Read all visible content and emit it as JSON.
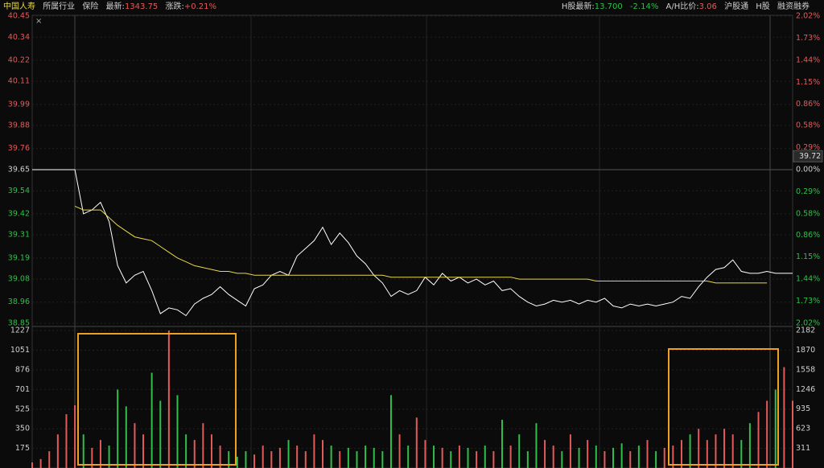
{
  "header": {
    "name": "中国人寿",
    "industry_label": "所属行业",
    "industry": "保险",
    "last_label": "最新:",
    "last": "1343.75",
    "change_label": "涨跌:",
    "change": "+0.21%",
    "h_last_label": "H股最新:",
    "h_last": "13.700",
    "h_change": "-2.14%",
    "ah_label": "A/H比价:",
    "ah": "3.06",
    "links": [
      "沪股通",
      "H股",
      "融资融券"
    ]
  },
  "chart_data": [
    {
      "type": "line",
      "reference": 39.65,
      "cursor_value": 39.72,
      "ylim": [
        38.85,
        40.45
      ],
      "yticks": [
        40.45,
        40.34,
        40.22,
        40.11,
        39.99,
        39.88,
        39.76,
        39.65,
        39.54,
        39.42,
        39.31,
        39.19,
        39.08,
        38.96,
        38.85
      ],
      "y2lim": [
        -2.02,
        2.02
      ],
      "y2ticks": [
        {
          "value": 2.02,
          "label": "2.02%"
        },
        {
          "value": 1.73,
          "label": "1.73%"
        },
        {
          "value": 1.44,
          "label": "1.44%"
        },
        {
          "value": 1.15,
          "label": "1.15%"
        },
        {
          "value": 0.86,
          "label": "0.86%"
        },
        {
          "value": 0.58,
          "label": "0.58%"
        },
        {
          "value": 0.29,
          "label": "0.29%"
        },
        {
          "value": 0,
          "label": "0.00%"
        },
        {
          "value": -0.29,
          "label": "0.29%"
        },
        {
          "value": -0.58,
          "label": "0.58%"
        },
        {
          "value": -0.86,
          "label": "0.86%"
        },
        {
          "value": -1.15,
          "label": "1.15%"
        },
        {
          "value": -1.44,
          "label": "1.44%"
        },
        {
          "value": -1.73,
          "label": "1.73%"
        },
        {
          "value": -2.02,
          "label": "2.02%"
        }
      ],
      "up_color": "#e35a5a",
      "down_color": "#2fbf4a",
      "flat_color": "#cfcfcf",
      "series": [
        {
          "color": "#ffffff",
          "values": [
            39.65,
            39.65,
            39.65,
            39.65,
            39.65,
            39.65,
            39.42,
            39.44,
            39.48,
            39.38,
            39.15,
            39.06,
            39.1,
            39.12,
            39.02,
            38.9,
            38.93,
            38.92,
            38.89,
            38.95,
            38.98,
            39.0,
            39.04,
            39.0,
            38.97,
            38.94,
            39.03,
            39.05,
            39.1,
            39.12,
            39.1,
            39.2,
            39.24,
            39.28,
            39.35,
            39.26,
            39.32,
            39.27,
            39.2,
            39.16,
            39.1,
            39.06,
            38.99,
            39.02,
            39.0,
            39.02,
            39.09,
            39.05,
            39.11,
            39.07,
            39.09,
            39.06,
            39.08,
            39.05,
            39.07,
            39.02,
            39.03,
            38.99,
            38.96,
            38.94,
            38.95,
            38.97,
            38.96,
            38.97,
            38.95,
            38.97,
            38.96,
            38.98,
            38.94,
            38.93,
            38.95,
            38.94,
            38.95,
            38.94,
            38.95,
            38.96,
            38.99,
            38.98,
            39.04,
            39.09,
            39.13,
            39.14,
            39.18,
            39.12,
            39.11,
            39.11,
            39.12,
            39.11,
            39.11,
            39.11
          ]
        },
        {
          "color": "#e6d84a",
          "values": [
            null,
            null,
            null,
            null,
            null,
            39.46,
            39.44,
            39.44,
            39.44,
            39.4,
            39.36,
            39.33,
            39.3,
            39.29,
            39.28,
            39.25,
            39.22,
            39.19,
            39.17,
            39.15,
            39.14,
            39.13,
            39.12,
            39.12,
            39.11,
            39.11,
            39.1,
            39.1,
            39.1,
            39.1,
            39.1,
            39.1,
            39.1,
            39.1,
            39.1,
            39.1,
            39.1,
            39.1,
            39.1,
            39.1,
            39.1,
            39.1,
            39.09,
            39.09,
            39.09,
            39.09,
            39.09,
            39.09,
            39.09,
            39.09,
            39.09,
            39.09,
            39.09,
            39.09,
            39.09,
            39.09,
            39.09,
            39.08,
            39.08,
            39.08,
            39.08,
            39.08,
            39.08,
            39.08,
            39.08,
            39.08,
            39.07,
            39.07,
            39.07,
            39.07,
            39.07,
            39.07,
            39.07,
            39.07,
            39.07,
            39.07,
            39.07,
            39.07,
            39.07,
            39.07,
            39.06,
            39.06,
            39.06,
            39.06,
            39.06,
            39.06,
            39.06,
            null,
            null,
            null
          ]
        }
      ]
    },
    {
      "type": "bar",
      "ylim": [
        0,
        1227
      ],
      "yticks": [
        1227,
        1051,
        876,
        701,
        525,
        350,
        175
      ],
      "y2lim": [
        0,
        2182
      ],
      "y2ticks": [
        2182,
        1870,
        1558,
        1246,
        935,
        623,
        311
      ],
      "values": [
        50,
        80,
        150,
        300,
        480,
        560,
        300,
        180,
        250,
        200,
        700,
        550,
        400,
        300,
        850,
        600,
        1227,
        650,
        300,
        250,
        400,
        300,
        200,
        150,
        100,
        150,
        120,
        200,
        150,
        180,
        250,
        200,
        150,
        300,
        250,
        200,
        150,
        180,
        150,
        200,
        180,
        150,
        650,
        300,
        200,
        450,
        250,
        200,
        180,
        150,
        200,
        180,
        150,
        200,
        150,
        430,
        200,
        300,
        150,
        400,
        250,
        200,
        150,
        300,
        180,
        250,
        200,
        150,
        180,
        220,
        150,
        200,
        250,
        150,
        180,
        200,
        250,
        300,
        350,
        250,
        300,
        350,
        300,
        250,
        400,
        500,
        600,
        700,
        900,
        600
      ]
    }
  ]
}
